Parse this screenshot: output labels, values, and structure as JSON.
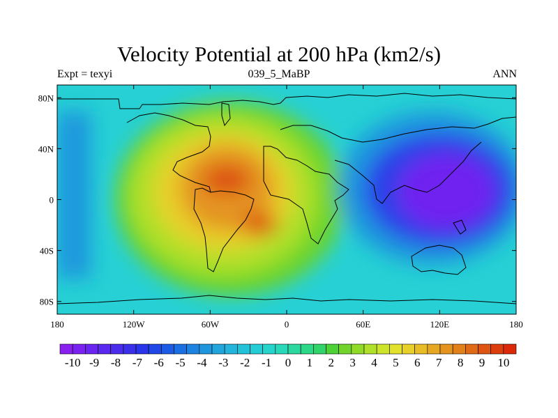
{
  "header": {
    "title": "Velocity Potential at 200 hPa (km2/s)",
    "left": "Expt = texyi",
    "center": "039_5_MaBP",
    "right": "ANN"
  },
  "chart_data": {
    "type": "heatmap",
    "title": "Velocity Potential at 200 hPa (km2/s)",
    "subtitle_left": "Expt = texyi",
    "subtitle_center": "039_5_MaBP",
    "subtitle_right": "ANN",
    "projection": "cylindrical equidistant",
    "xlim": [
      -180,
      180
    ],
    "ylim": [
      -90,
      90
    ],
    "x_ticks": [
      {
        "value": -180,
        "label": "180"
      },
      {
        "value": -120,
        "label": "120W"
      },
      {
        "value": -60,
        "label": "60W"
      },
      {
        "value": 0,
        "label": "0"
      },
      {
        "value": 60,
        "label": "60E"
      },
      {
        "value": 120,
        "label": "120E"
      },
      {
        "value": 180,
        "label": "180"
      }
    ],
    "y_ticks": [
      {
        "value": 80,
        "label": "80N"
      },
      {
        "value": 40,
        "label": "40N"
      },
      {
        "value": 0,
        "label": "0"
      },
      {
        "value": -40,
        "label": "40S"
      },
      {
        "value": -80,
        "label": "80S"
      }
    ],
    "contour_levels": [
      -10,
      -9.5,
      -9,
      -8.5,
      -8,
      -7.5,
      -7,
      -6.5,
      -6,
      -5.5,
      -5,
      -4.5,
      -4,
      -3.5,
      -3,
      -2.5,
      -2,
      -1.5,
      -1,
      -0.5,
      0,
      0.5,
      1,
      1.5,
      2,
      2.5,
      3,
      3.5,
      4,
      4.5,
      5,
      5.5,
      6,
      6.5,
      7,
      7.5,
      8,
      8.5,
      9,
      9.5,
      10
    ],
    "colorbar_labels": [
      "-10",
      "-9",
      "-8",
      "-7",
      "-6",
      "-5",
      "-4",
      "-3",
      "-2",
      "-1",
      "0",
      "1",
      "2",
      "3",
      "4",
      "5",
      "6",
      "7",
      "8",
      "9",
      "10"
    ],
    "colorbar_colors": [
      "#8a20f0",
      "#7a22f0",
      "#6a24ef",
      "#5a28ee",
      "#4a2cec",
      "#3a30ea",
      "#2a34e8",
      "#2048e6",
      "#1c5ce4",
      "#1a70e2",
      "#1c84e0",
      "#1e96de",
      "#20a6dc",
      "#22b4da",
      "#22c2d8",
      "#24ccd6",
      "#26d4cc",
      "#28d8b8",
      "#2ad8a0",
      "#2cd888",
      "#30d46a",
      "#4cd236",
      "#70d42a",
      "#92da28",
      "#b0e02a",
      "#cce42c",
      "#e2e22e",
      "#e8d02a",
      "#e8bc26",
      "#e6a822",
      "#e4941e",
      "#e2801a",
      "#e06a16",
      "#de5412",
      "#dc3e0e",
      "#da2a0a"
    ],
    "extrema": [
      {
        "name": "maximum",
        "lon": -55,
        "lat": 5,
        "value": 9
      },
      {
        "name": "secondary maximum",
        "lon": -20,
        "lat": -25,
        "value": 9
      },
      {
        "name": "minimum",
        "lon": 130,
        "lat": 5,
        "value": -10
      }
    ]
  }
}
